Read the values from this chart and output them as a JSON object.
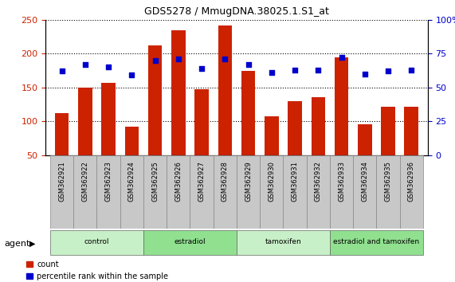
{
  "title": "GDS5278 / MmugDNA.38025.1.S1_at",
  "categories": [
    "GSM362921",
    "GSM362922",
    "GSM362923",
    "GSM362924",
    "GSM362925",
    "GSM362926",
    "GSM362927",
    "GSM362928",
    "GSM362929",
    "GSM362930",
    "GSM362931",
    "GSM362932",
    "GSM362933",
    "GSM362934",
    "GSM362935",
    "GSM362936"
  ],
  "count_values": [
    112,
    150,
    157,
    92,
    212,
    235,
    147,
    242,
    175,
    107,
    130,
    135,
    195,
    96,
    121,
    121
  ],
  "percentile_values": [
    62,
    67,
    65,
    59,
    70,
    71,
    64,
    71,
    67,
    61,
    63,
    63,
    72,
    60,
    62,
    63
  ],
  "groups": [
    {
      "label": "control",
      "start": 0,
      "end": 4,
      "color": "#c8f0c8"
    },
    {
      "label": "estradiol",
      "start": 4,
      "end": 8,
      "color": "#90e090"
    },
    {
      "label": "tamoxifen",
      "start": 8,
      "end": 12,
      "color": "#c8f0c8"
    },
    {
      "label": "estradiol and tamoxifen",
      "start": 12,
      "end": 16,
      "color": "#90e090"
    }
  ],
  "bar_color": "#cc2200",
  "dot_color": "#0000cc",
  "left_ylim": [
    50,
    250
  ],
  "left_yticks": [
    50,
    100,
    150,
    200,
    250
  ],
  "right_ylim": [
    0,
    100
  ],
  "right_yticks": [
    0,
    25,
    50,
    75,
    100
  ],
  "left_ylabel_color": "#cc2200",
  "right_ylabel_color": "#0000cc",
  "legend_count_label": "count",
  "legend_percentile_label": "percentile rank within the sample",
  "background_color": "#ffffff",
  "plot_bg_color": "#ffffff",
  "xtick_bg_color": "#c8c8c8",
  "group_label_color": "#000000",
  "figsize": [
    5.71,
    3.54
  ],
  "dpi": 100
}
